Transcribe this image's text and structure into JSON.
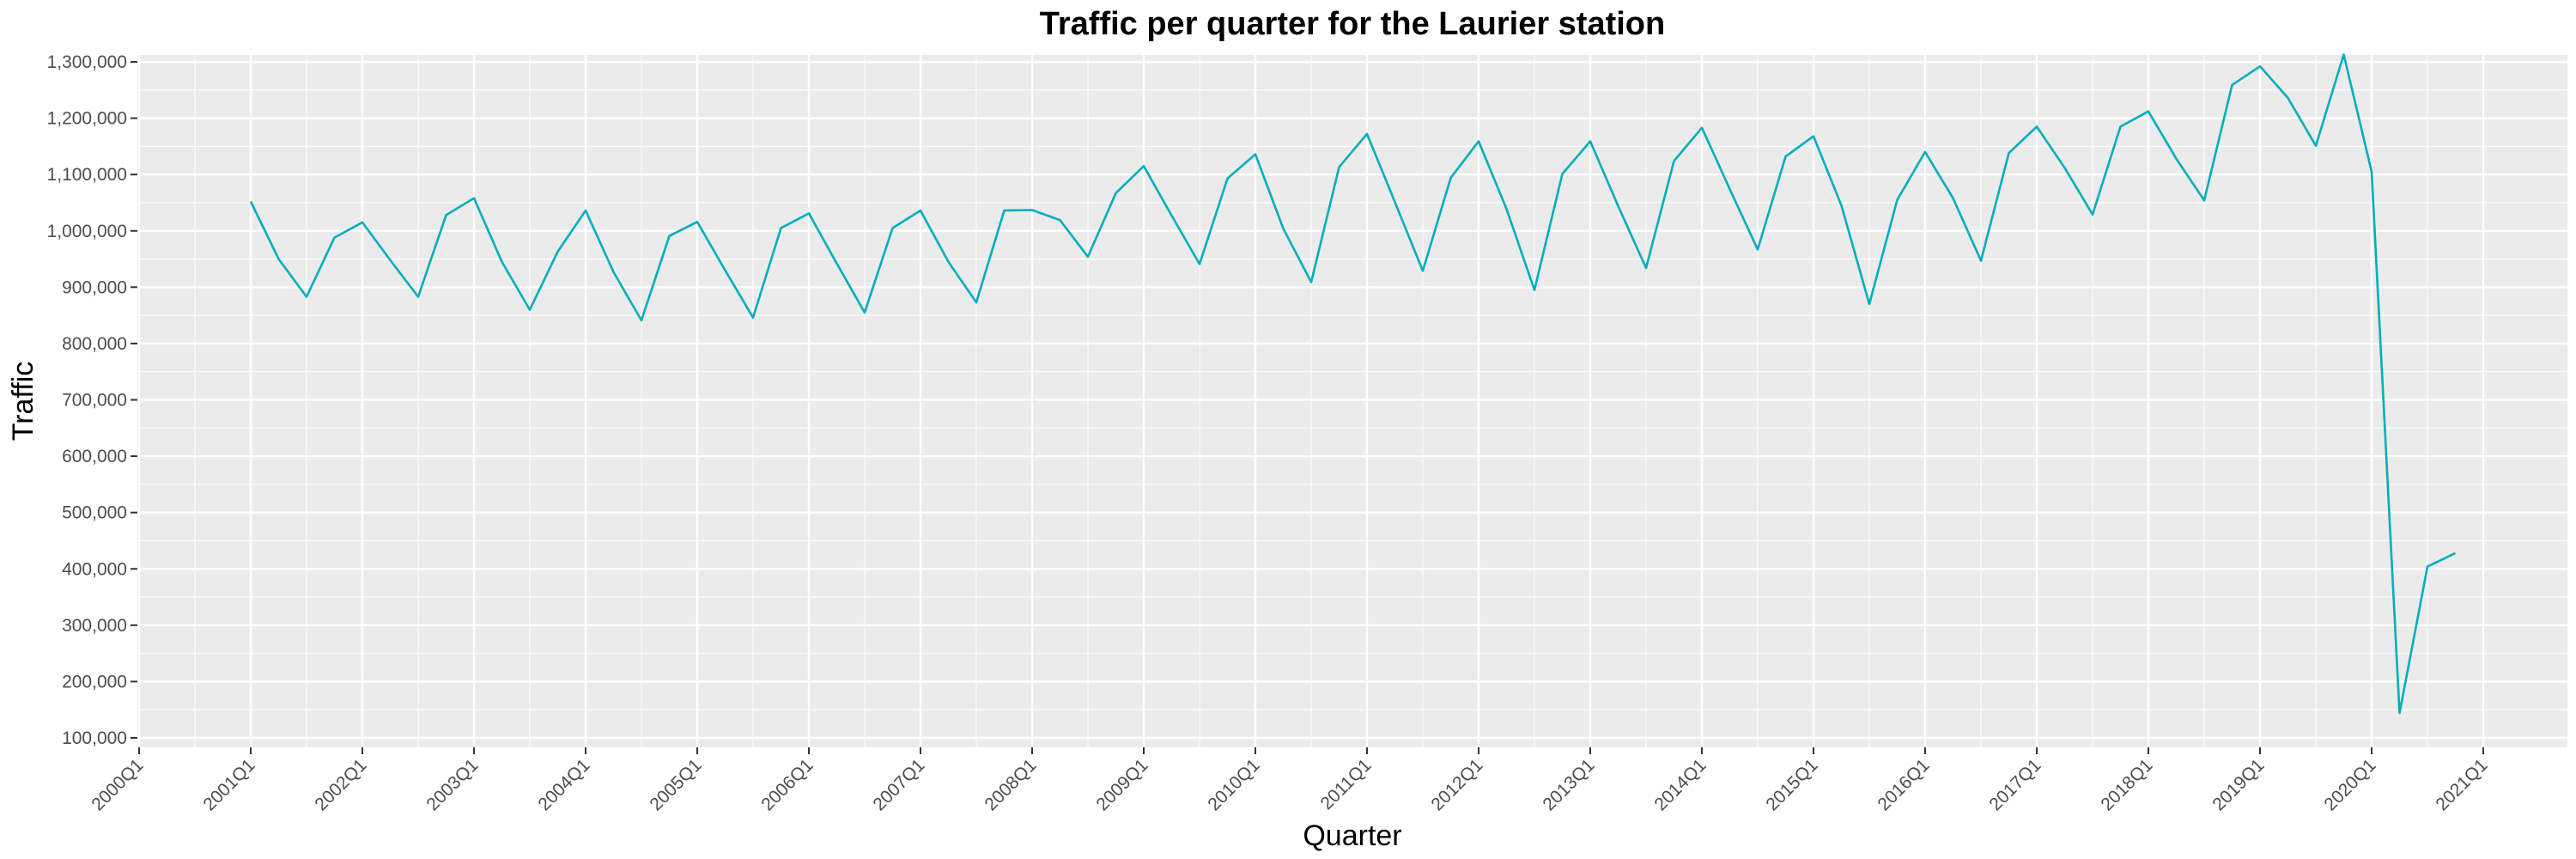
{
  "chart_data": {
    "type": "line",
    "title": "Traffic per quarter for the Laurier station",
    "xlabel": "Quarter",
    "ylabel": "Traffic",
    "x_tick_labels": [
      "2000Q1",
      "2001Q1",
      "2002Q1",
      "2003Q1",
      "2004Q1",
      "2005Q1",
      "2006Q1",
      "2007Q1",
      "2008Q1",
      "2009Q1",
      "2010Q1",
      "2011Q1",
      "2012Q1",
      "2013Q1",
      "2014Q1",
      "2015Q1",
      "2016Q1",
      "2017Q1",
      "2018Q1",
      "2019Q1",
      "2020Q1",
      "2021Q1"
    ],
    "y_ticks": [
      100000,
      200000,
      300000,
      400000,
      500000,
      600000,
      700000,
      800000,
      900000,
      1000000,
      1100000,
      1200000,
      1300000
    ],
    "y_tick_labels": [
      "100,000",
      "200,000",
      "300,000",
      "400,000",
      "500,000",
      "600,000",
      "700,000",
      "800,000",
      "900,000",
      "1,000,000",
      "1,100,000",
      "1,200,000",
      "1,300,000"
    ],
    "xlim": [
      "2000Q1",
      "2021Q1"
    ],
    "ylim": [
      100000,
      1300000
    ],
    "grid": true,
    "background": "#ebebeb",
    "line_color": "#00aebd",
    "series": [
      {
        "x": [
          "2001Q1",
          "2001Q2",
          "2001Q3",
          "2001Q4",
          "2002Q1",
          "2002Q2",
          "2002Q3",
          "2002Q4",
          "2003Q1",
          "2003Q2",
          "2003Q3",
          "2003Q4",
          "2004Q1",
          "2004Q2",
          "2004Q3",
          "2004Q4",
          "2005Q1",
          "2005Q2",
          "2005Q3",
          "2005Q4",
          "2006Q1",
          "2006Q2",
          "2006Q3",
          "2006Q4",
          "2007Q1",
          "2007Q2",
          "2007Q3",
          "2007Q4",
          "2008Q1",
          "2008Q2",
          "2008Q3",
          "2008Q4",
          "2009Q1",
          "2009Q2",
          "2009Q3",
          "2009Q4",
          "2010Q1",
          "2010Q2",
          "2010Q3",
          "2010Q4",
          "2011Q1",
          "2011Q2",
          "2011Q3",
          "2011Q4",
          "2012Q1",
          "2012Q2",
          "2012Q3",
          "2012Q4",
          "2013Q1",
          "2013Q2",
          "2013Q3",
          "2013Q4",
          "2014Q1",
          "2014Q2",
          "2014Q3",
          "2014Q4",
          "2015Q1",
          "2015Q2",
          "2015Q3",
          "2015Q4",
          "2016Q1",
          "2016Q2",
          "2016Q3",
          "2016Q4",
          "2017Q1",
          "2017Q2",
          "2017Q3",
          "2017Q4",
          "2018Q1",
          "2018Q2",
          "2018Q3",
          "2018Q4",
          "2019Q1",
          "2019Q2",
          "2019Q3",
          "2019Q4",
          "2020Q1",
          "2020Q2",
          "2020Q3",
          "2020Q4"
        ],
        "values": [
          1052000,
          950000,
          883000,
          988000,
          1015000,
          948000,
          883000,
          1028000,
          1058000,
          945000,
          860000,
          963000,
          1036000,
          927000,
          841000,
          991000,
          1016000,
          930000,
          846000,
          1005000,
          1031000,
          942000,
          855000,
          1005000,
          1036000,
          945000,
          873000,
          1036000,
          1037000,
          1019000,
          954000,
          1067000,
          1115000,
          1027000,
          941000,
          1093000,
          1136000,
          1004000,
          909000,
          1113000,
          1172000,
          1051000,
          929000,
          1094000,
          1159000,
          1039000,
          895000,
          1101000,
          1159000,
          1044000,
          934000,
          1124000,
          1183000,
          1074000,
          967000,
          1132000,
          1168000,
          1045000,
          870000,
          1055000,
          1140000,
          1058000,
          947000,
          1138000,
          1185000,
          1112000,
          1029000,
          1185000,
          1212000,
          1128000,
          1054000,
          1259000,
          1292000,
          1236000,
          1151000,
          1313000,
          1105000,
          144000,
          404000,
          428000
        ]
      }
    ]
  }
}
